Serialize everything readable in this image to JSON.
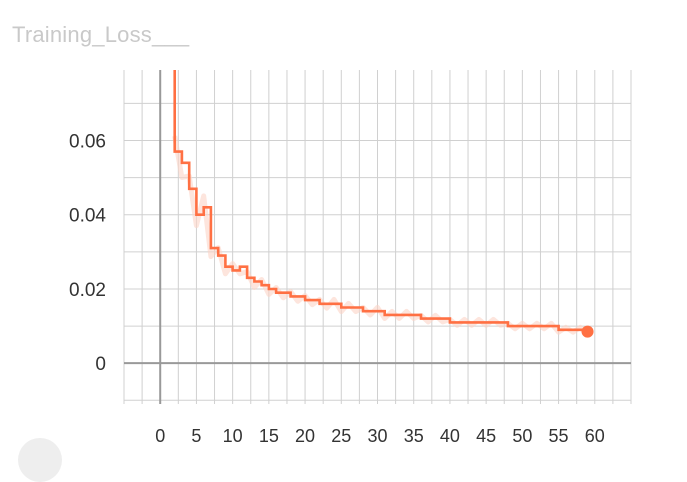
{
  "title": "Training_Loss___",
  "colors": {
    "series": "#ff7043",
    "series_raw": "#fbd3c6",
    "grid": "#d0d0d0",
    "axis": "#999999",
    "tick_text": "#333333",
    "title_text": "#c9c9c9"
  },
  "chart_data": {
    "type": "line",
    "title": "Training_Loss___",
    "xlabel": "",
    "ylabel": "",
    "xlim": [
      -5,
      65
    ],
    "ylim": [
      -0.011,
      0.079
    ],
    "xticks": [
      0,
      5,
      10,
      15,
      20,
      25,
      30,
      35,
      40,
      45,
      50,
      55,
      60
    ],
    "xtick_labels": [
      "0",
      "5",
      "10",
      "15",
      "20",
      "25",
      "30",
      "35",
      "40",
      "45",
      "50",
      "55",
      "60"
    ],
    "yticks": [
      0,
      0.02,
      0.04,
      0.06
    ],
    "ytick_labels": [
      "0",
      "0.02",
      "0.04",
      "0.06"
    ],
    "grid": true,
    "legend": "none",
    "series": [
      {
        "x": [
          2,
          3,
          4,
          5,
          6,
          7,
          8,
          9,
          10,
          11,
          12,
          13,
          14,
          15,
          16,
          17,
          18,
          19,
          20,
          21,
          22,
          23,
          24,
          25,
          26,
          27,
          28,
          29,
          30,
          31,
          32,
          33,
          34,
          35,
          36,
          37,
          38,
          39,
          40,
          41,
          42,
          43,
          44,
          45,
          46,
          47,
          48,
          49,
          50,
          51,
          52,
          53,
          54,
          55,
          56,
          57,
          58,
          59
        ],
        "values": [
          0.057,
          0.054,
          0.047,
          0.04,
          0.042,
          0.031,
          0.029,
          0.026,
          0.025,
          0.026,
          0.023,
          0.022,
          0.021,
          0.02,
          0.019,
          0.019,
          0.018,
          0.018,
          0.017,
          0.017,
          0.016,
          0.016,
          0.016,
          0.015,
          0.015,
          0.015,
          0.014,
          0.014,
          0.014,
          0.013,
          0.013,
          0.013,
          0.013,
          0.013,
          0.012,
          0.012,
          0.012,
          0.012,
          0.011,
          0.011,
          0.011,
          0.011,
          0.011,
          0.011,
          0.011,
          0.011,
          0.01,
          0.01,
          0.01,
          0.01,
          0.01,
          0.01,
          0.01,
          0.009,
          0.009,
          0.009,
          0.009,
          0.008
        ]
      }
    ],
    "last_point": {
      "x": 59,
      "y": 0.0085
    }
  }
}
